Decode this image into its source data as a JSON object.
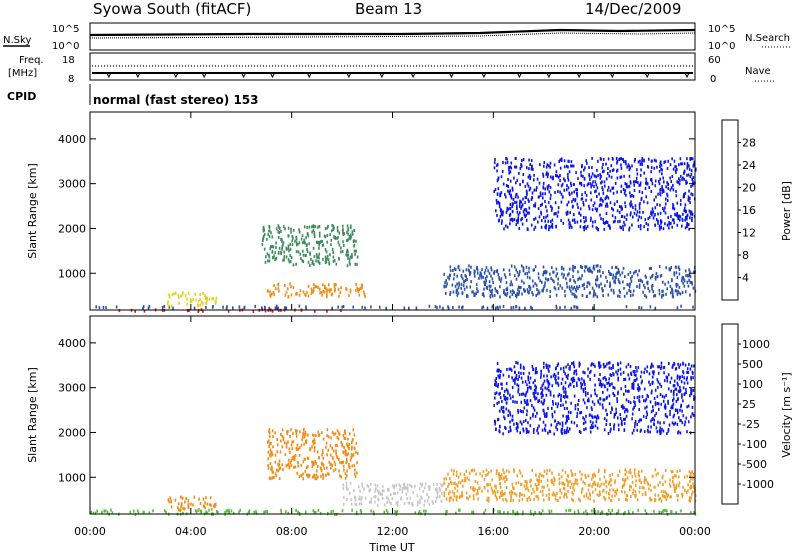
{
  "header": {
    "station": "Syowa South (fitACF)",
    "beam": "Beam 13",
    "date": "14/Dec/2009"
  },
  "top_panels": {
    "nsky_label": "N.Sky",
    "nsky_ticks": [
      "10^5",
      "10^0"
    ],
    "nsearch_label": "N.Search",
    "nsearch_ticks": [
      "10^5",
      "10^0"
    ],
    "freq_label": "Freq.",
    "freq_unit": "[MHz]",
    "freq_ticks": [
      "18",
      "8"
    ],
    "nave_label": "Nave",
    "nave_ticks": [
      "60",
      "0"
    ],
    "cpid_label": "CPID",
    "cpid_text": "normal (fast stereo) 153"
  },
  "chart_data": [
    {
      "type": "heatmap",
      "name": "power",
      "ylabel": "Slant Range [km]",
      "xlabel": "",
      "x_ticks": [
        "00:00",
        "04:00",
        "08:00",
        "12:00",
        "16:00",
        "20:00",
        "00:00"
      ],
      "y_ticks": [
        "1000",
        "2000",
        "3000",
        "4000"
      ],
      "y_tick_values": [
        1000,
        2000,
        3000,
        4000
      ],
      "ylim": [
        180,
        4600
      ],
      "xlim_hours": [
        0,
        24
      ],
      "colorbar": {
        "label": "Power [dB]",
        "ticks": [
          "4",
          "8",
          "12",
          "16",
          "20",
          "24",
          "28"
        ],
        "colors": [
          "#0a14e6",
          "#2a52a8",
          "#3d8a5a",
          "#4fc232",
          "#e6d21e",
          "#f08c14",
          "#f05a0a",
          "#e61414"
        ]
      },
      "scatter_regions": [
        {
          "hours": [
            0,
            10.2
          ],
          "range_km": [
            180,
            220
          ],
          "color": "#e61414"
        },
        {
          "hours": [
            0,
            24
          ],
          "range_km": [
            250,
            300
          ],
          "color": "#2a52a8"
        },
        {
          "hours": [
            3,
            5
          ],
          "range_km": [
            300,
            600
          ],
          "color": "#e6d21e"
        },
        {
          "hours": [
            6.8,
            10.6
          ],
          "range_km": [
            1200,
            2100
          ],
          "color": "#3d8a5a"
        },
        {
          "hours": [
            7,
            11
          ],
          "range_km": [
            500,
            800
          ],
          "color": "#f08c14"
        },
        {
          "hours": [
            16,
            24
          ],
          "range_km": [
            2000,
            3600
          ],
          "color": "#0a14e6"
        },
        {
          "hours": [
            14,
            24
          ],
          "range_km": [
            500,
            1200
          ],
          "color": "#2a52a8"
        }
      ]
    },
    {
      "type": "heatmap",
      "name": "velocity",
      "ylabel": "Slant Range [km]",
      "xlabel": "Time UT",
      "x_ticks": [
        "00:00",
        "04:00",
        "08:00",
        "12:00",
        "16:00",
        "20:00",
        "00:00"
      ],
      "y_ticks": [
        "1000",
        "2000",
        "3000",
        "4000"
      ],
      "y_tick_values": [
        1000,
        2000,
        3000,
        4000
      ],
      "ylim": [
        180,
        4600
      ],
      "xlim_hours": [
        0,
        24
      ],
      "colorbar": {
        "label": "Velocity [m s⁻¹]",
        "ticks": [
          "1000",
          "500",
          "100",
          "25",
          "-25",
          "-100",
          "-500",
          "-1000"
        ],
        "colors": [
          "#0a14e6",
          "#2a52a8",
          "#3d8a5a",
          "#4fc232",
          "#c8c8c8",
          "#f0a028",
          "#f08c14",
          "#f05a0a",
          "#e61414"
        ]
      },
      "scatter_regions": [
        {
          "hours": [
            0,
            24
          ],
          "range_km": [
            200,
            300
          ],
          "color": "#4fc232"
        },
        {
          "hours": [
            3,
            5
          ],
          "range_km": [
            300,
            600
          ],
          "color": "#f08c14"
        },
        {
          "hours": [
            7,
            10.6
          ],
          "range_km": [
            1000,
            2100
          ],
          "color": "#f08c14"
        },
        {
          "hours": [
            10,
            14
          ],
          "range_km": [
            400,
            900
          ],
          "color": "#c8c8c8"
        },
        {
          "hours": [
            16,
            24
          ],
          "range_km": [
            2000,
            3600
          ],
          "color": "#0a14e6"
        },
        {
          "hours": [
            14,
            24
          ],
          "range_km": [
            500,
            1200
          ],
          "color": "#f0a028"
        }
      ]
    }
  ]
}
